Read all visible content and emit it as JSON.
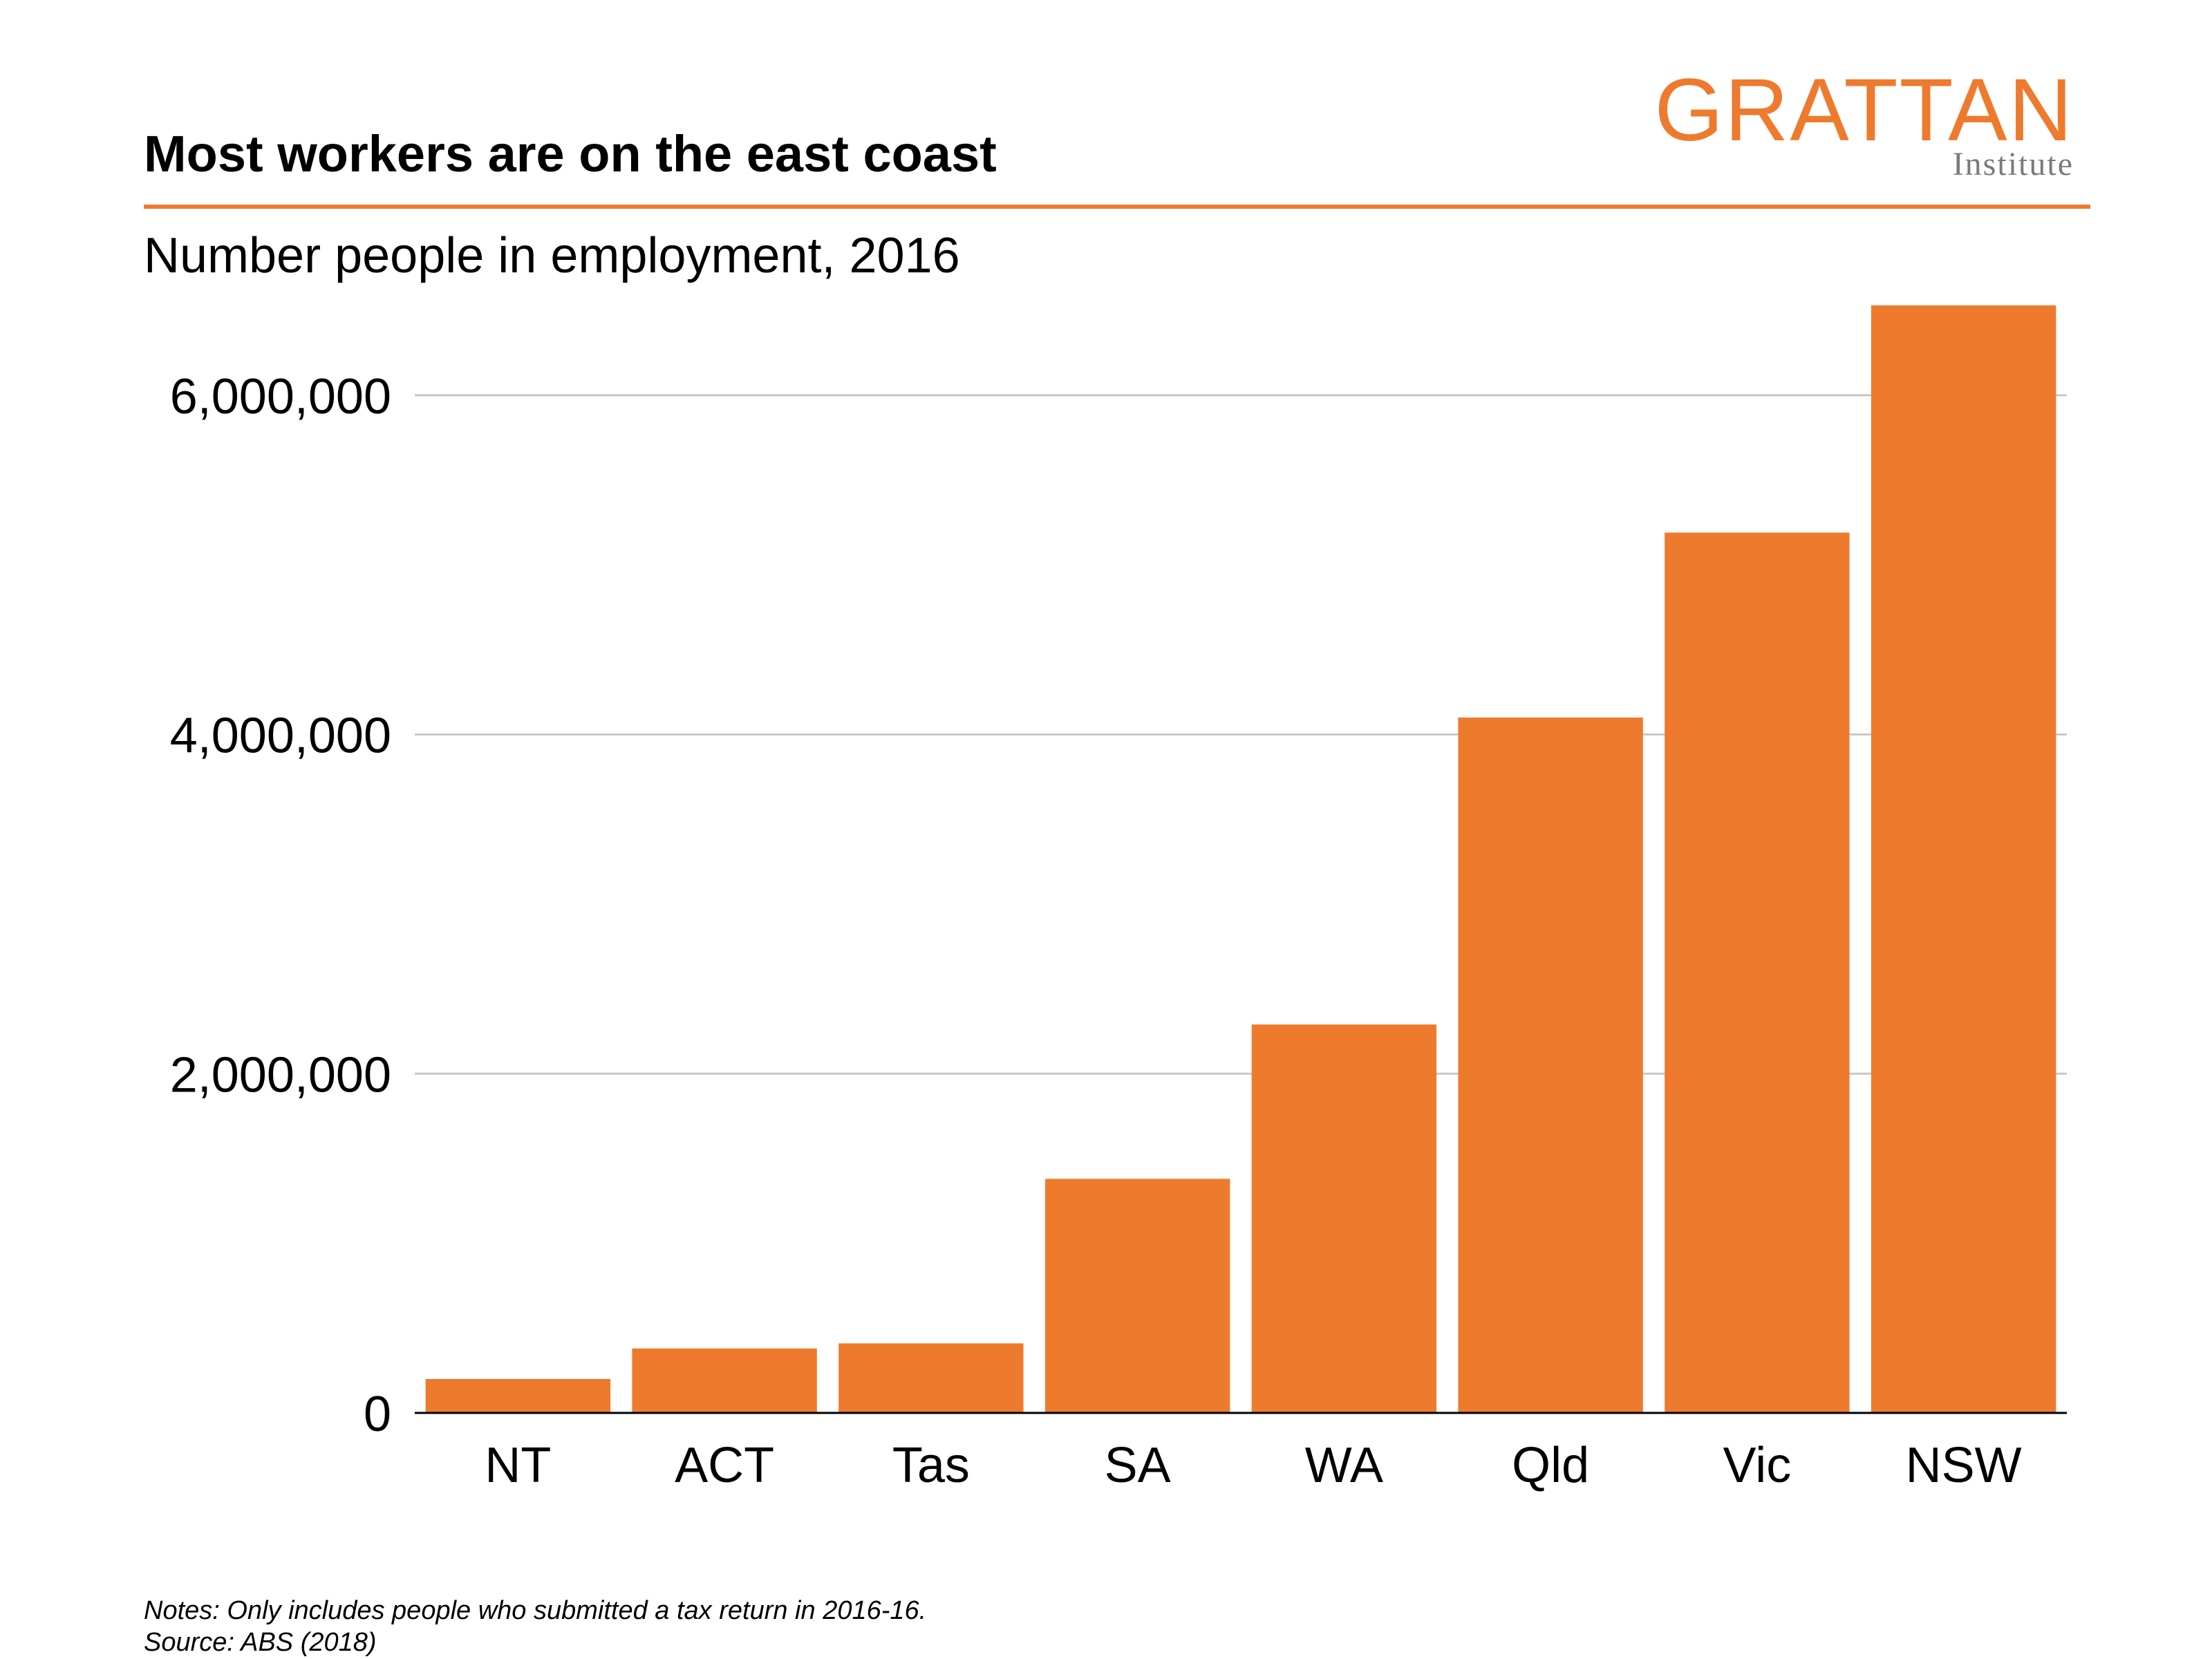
{
  "title": "Most workers are on the east coast",
  "subtitle": "Number people in employment, 2016",
  "logo": {
    "word": "GRATTAN",
    "sub": "Institute",
    "color": "#EE7A2E"
  },
  "notes": {
    "line1": "Notes: Only includes people who submitted a tax return in 2016-16.",
    "line2": "Source: ABS (2018)"
  },
  "chart_data": {
    "type": "bar",
    "categories": [
      "NT",
      "ACT",
      "Tas",
      "SA",
      "WA",
      "Qld",
      "Vic",
      "NSW"
    ],
    "values": [
      200000,
      380000,
      410000,
      1380000,
      2290000,
      4100000,
      5190000,
      6530000
    ],
    "yticks": [
      0,
      2000000,
      4000000,
      6000000
    ],
    "ytick_labels": [
      "0",
      "2,000,000",
      "4,000,000",
      "6,000,000"
    ],
    "ylim": [
      0,
      6700000
    ],
    "grid": true,
    "bar_color": "#EE7A2E",
    "grid_color": "#c8c8c8"
  }
}
